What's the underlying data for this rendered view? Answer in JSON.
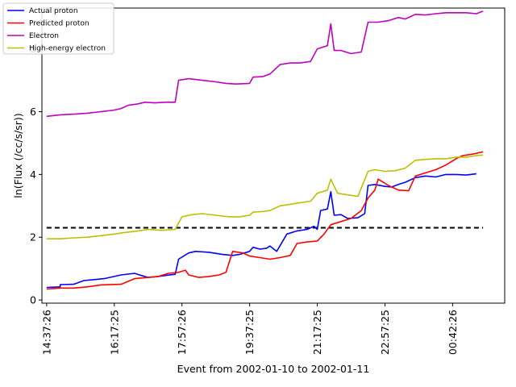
{
  "chart_data": {
    "type": "line",
    "title": "",
    "xlabel": "Event from 2002-01-10 to 2002-01-11",
    "ylabel": "ln(Flux (/cc/s/sr))",
    "xlim": [
      -0.07,
      6.77
    ],
    "ylim": [
      -0.1,
      9.3
    ],
    "x_tick_labels": [
      "14:37:26",
      "16:17:25",
      "17:57:26",
      "19:37:25",
      "21:17:25",
      "22:57:25",
      "00:42:26"
    ],
    "x_tick_positions": [
      0,
      1,
      2,
      3,
      4,
      5,
      6
    ],
    "y_ticks": [
      0,
      2,
      4,
      6,
      8
    ],
    "grid": false,
    "legend_placement": "top-left",
    "threshold": {
      "y": 2.3,
      "style": "dashed",
      "color": "#000000"
    },
    "series": [
      {
        "name": "Actual proton",
        "color": "#0000ff",
        "points": [
          [
            0,
            0.4
          ],
          [
            0.2,
            0.42
          ],
          [
            0.2,
            0.49
          ],
          [
            0.4,
            0.5
          ],
          [
            0.55,
            0.62
          ],
          [
            0.7,
            0.65
          ],
          [
            0.85,
            0.68
          ],
          [
            1.1,
            0.8
          ],
          [
            1.3,
            0.85
          ],
          [
            1.4,
            0.78
          ],
          [
            1.5,
            0.72
          ],
          [
            1.65,
            0.75
          ],
          [
            1.75,
            0.78
          ],
          [
            1.9,
            0.82
          ],
          [
            1.95,
            1.3
          ],
          [
            2.1,
            1.5
          ],
          [
            2.2,
            1.55
          ],
          [
            2.4,
            1.52
          ],
          [
            2.6,
            1.45
          ],
          [
            2.75,
            1.42
          ],
          [
            2.85,
            1.45
          ],
          [
            3.0,
            1.55
          ],
          [
            3.05,
            1.68
          ],
          [
            3.15,
            1.62
          ],
          [
            3.25,
            1.65
          ],
          [
            3.3,
            1.72
          ],
          [
            3.4,
            1.55
          ],
          [
            3.55,
            2.1
          ],
          [
            3.7,
            2.2
          ],
          [
            3.85,
            2.25
          ],
          [
            3.95,
            2.35
          ],
          [
            4.0,
            2.25
          ],
          [
            4.05,
            2.85
          ],
          [
            4.15,
            2.9
          ],
          [
            4.2,
            3.45
          ],
          [
            4.25,
            2.7
          ],
          [
            4.35,
            2.72
          ],
          [
            4.45,
            2.6
          ],
          [
            4.6,
            2.62
          ],
          [
            4.7,
            2.75
          ],
          [
            4.75,
            3.65
          ],
          [
            4.85,
            3.68
          ],
          [
            5.0,
            3.62
          ],
          [
            5.1,
            3.6
          ],
          [
            5.2,
            3.68
          ],
          [
            5.3,
            3.75
          ],
          [
            5.45,
            3.9
          ],
          [
            5.6,
            3.95
          ],
          [
            5.75,
            3.92
          ],
          [
            5.9,
            4.0
          ],
          [
            6.05,
            4.0
          ],
          [
            6.2,
            3.98
          ],
          [
            6.35,
            4.02
          ]
        ]
      },
      {
        "name": "Predicted proton",
        "color": "#ff0000",
        "points": [
          [
            0,
            0.35
          ],
          [
            0.2,
            0.38
          ],
          [
            0.4,
            0.38
          ],
          [
            0.6,
            0.42
          ],
          [
            0.8,
            0.48
          ],
          [
            1.1,
            0.5
          ],
          [
            1.3,
            0.68
          ],
          [
            1.5,
            0.72
          ],
          [
            1.65,
            0.75
          ],
          [
            1.8,
            0.85
          ],
          [
            1.95,
            0.88
          ],
          [
            2.05,
            0.95
          ],
          [
            2.1,
            0.8
          ],
          [
            2.25,
            0.72
          ],
          [
            2.4,
            0.75
          ],
          [
            2.55,
            0.8
          ],
          [
            2.65,
            0.88
          ],
          [
            2.75,
            1.55
          ],
          [
            2.9,
            1.5
          ],
          [
            3.0,
            1.4
          ],
          [
            3.15,
            1.35
          ],
          [
            3.3,
            1.3
          ],
          [
            3.45,
            1.35
          ],
          [
            3.6,
            1.42
          ],
          [
            3.7,
            1.8
          ],
          [
            3.85,
            1.85
          ],
          [
            4.0,
            1.88
          ],
          [
            4.1,
            2.1
          ],
          [
            4.2,
            2.4
          ],
          [
            4.35,
            2.5
          ],
          [
            4.5,
            2.6
          ],
          [
            4.65,
            2.85
          ],
          [
            4.75,
            3.25
          ],
          [
            4.85,
            3.5
          ],
          [
            4.9,
            3.85
          ],
          [
            5.05,
            3.65
          ],
          [
            5.2,
            3.5
          ],
          [
            5.35,
            3.48
          ],
          [
            5.45,
            3.95
          ],
          [
            5.6,
            4.05
          ],
          [
            5.75,
            4.15
          ],
          [
            5.9,
            4.3
          ],
          [
            6.05,
            4.5
          ],
          [
            6.15,
            4.6
          ],
          [
            6.3,
            4.65
          ],
          [
            6.45,
            4.72
          ]
        ]
      },
      {
        "name": "Electron",
        "color": "#bf00bf",
        "points": [
          [
            0,
            5.85
          ],
          [
            0.2,
            5.9
          ],
          [
            0.4,
            5.92
          ],
          [
            0.6,
            5.95
          ],
          [
            0.8,
            6.0
          ],
          [
            1.0,
            6.05
          ],
          [
            1.1,
            6.1
          ],
          [
            1.2,
            6.2
          ],
          [
            1.35,
            6.25
          ],
          [
            1.45,
            6.3
          ],
          [
            1.6,
            6.28
          ],
          [
            1.75,
            6.3
          ],
          [
            1.9,
            6.3
          ],
          [
            1.95,
            7.0
          ],
          [
            2.1,
            7.05
          ],
          [
            2.3,
            7.0
          ],
          [
            2.5,
            6.95
          ],
          [
            2.65,
            6.9
          ],
          [
            2.8,
            6.88
          ],
          [
            3.0,
            6.9
          ],
          [
            3.05,
            7.1
          ],
          [
            3.2,
            7.12
          ],
          [
            3.3,
            7.2
          ],
          [
            3.45,
            7.5
          ],
          [
            3.6,
            7.55
          ],
          [
            3.75,
            7.55
          ],
          [
            3.9,
            7.6
          ],
          [
            4.0,
            8.0
          ],
          [
            4.15,
            8.1
          ],
          [
            4.2,
            8.8
          ],
          [
            4.25,
            7.95
          ],
          [
            4.35,
            7.95
          ],
          [
            4.5,
            7.85
          ],
          [
            4.65,
            7.9
          ],
          [
            4.75,
            8.85
          ],
          [
            4.9,
            8.85
          ],
          [
            5.05,
            8.9
          ],
          [
            5.2,
            9.0
          ],
          [
            5.3,
            8.95
          ],
          [
            5.45,
            9.1
          ],
          [
            5.6,
            9.08
          ],
          [
            5.75,
            9.12
          ],
          [
            5.9,
            9.15
          ],
          [
            6.05,
            9.15
          ],
          [
            6.2,
            9.15
          ],
          [
            6.35,
            9.12
          ],
          [
            6.45,
            9.2
          ]
        ]
      },
      {
        "name": "High-energy electron",
        "color": "#bfbf00",
        "points": [
          [
            0,
            1.95
          ],
          [
            0.2,
            1.95
          ],
          [
            0.4,
            1.98
          ],
          [
            0.6,
            2.0
          ],
          [
            0.8,
            2.05
          ],
          [
            1.0,
            2.1
          ],
          [
            1.15,
            2.15
          ],
          [
            1.35,
            2.2
          ],
          [
            1.5,
            2.25
          ],
          [
            1.7,
            2.22
          ],
          [
            1.9,
            2.25
          ],
          [
            2.0,
            2.65
          ],
          [
            2.15,
            2.72
          ],
          [
            2.3,
            2.75
          ],
          [
            2.5,
            2.7
          ],
          [
            2.7,
            2.65
          ],
          [
            2.85,
            2.65
          ],
          [
            3.0,
            2.7
          ],
          [
            3.05,
            2.8
          ],
          [
            3.2,
            2.82
          ],
          [
            3.3,
            2.85
          ],
          [
            3.45,
            3.0
          ],
          [
            3.6,
            3.05
          ],
          [
            3.75,
            3.1
          ],
          [
            3.9,
            3.15
          ],
          [
            4.0,
            3.4
          ],
          [
            4.15,
            3.5
          ],
          [
            4.2,
            3.85
          ],
          [
            4.3,
            3.4
          ],
          [
            4.45,
            3.35
          ],
          [
            4.6,
            3.3
          ],
          [
            4.75,
            4.1
          ],
          [
            4.85,
            4.15
          ],
          [
            5.0,
            4.1
          ],
          [
            5.15,
            4.12
          ],
          [
            5.3,
            4.2
          ],
          [
            5.45,
            4.45
          ],
          [
            5.6,
            4.48
          ],
          [
            5.75,
            4.5
          ],
          [
            5.9,
            4.5
          ],
          [
            6.05,
            4.55
          ],
          [
            6.2,
            4.55
          ],
          [
            6.35,
            4.6
          ],
          [
            6.45,
            4.62
          ]
        ]
      }
    ]
  }
}
